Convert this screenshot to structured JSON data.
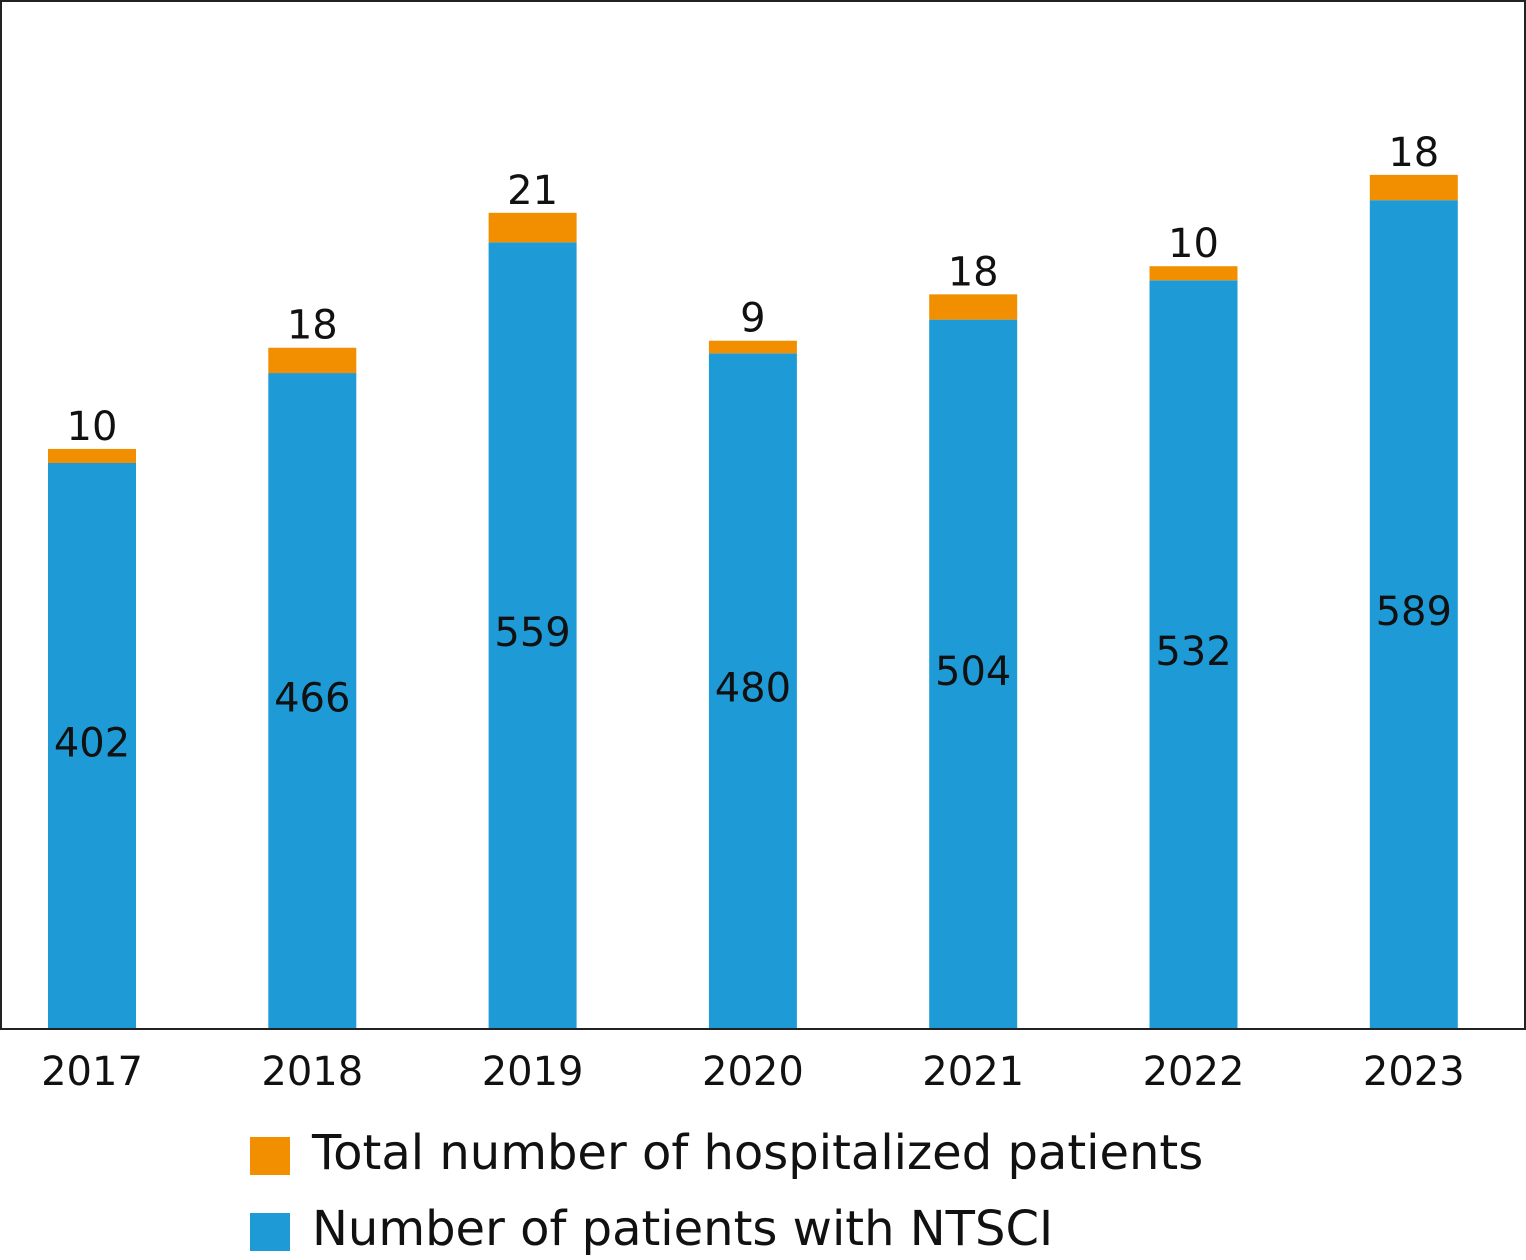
{
  "chart_data": {
    "type": "stacked_bar",
    "categories": [
      "2017",
      "2018",
      "2019",
      "2020",
      "2021",
      "2022",
      "2023"
    ],
    "series": [
      {
        "name": "Number of patients with NTSCI",
        "color": "#1e9bd7",
        "values": [
          402,
          466,
          559,
          480,
          504,
          532,
          589
        ]
      },
      {
        "name": "Total number of hospitalized patients",
        "color": "#f18f00",
        "values": [
          10,
          18,
          21,
          9,
          18,
          10,
          18
        ]
      }
    ],
    "ylim": [
      0,
      730
    ],
    "legend": "bottom"
  }
}
